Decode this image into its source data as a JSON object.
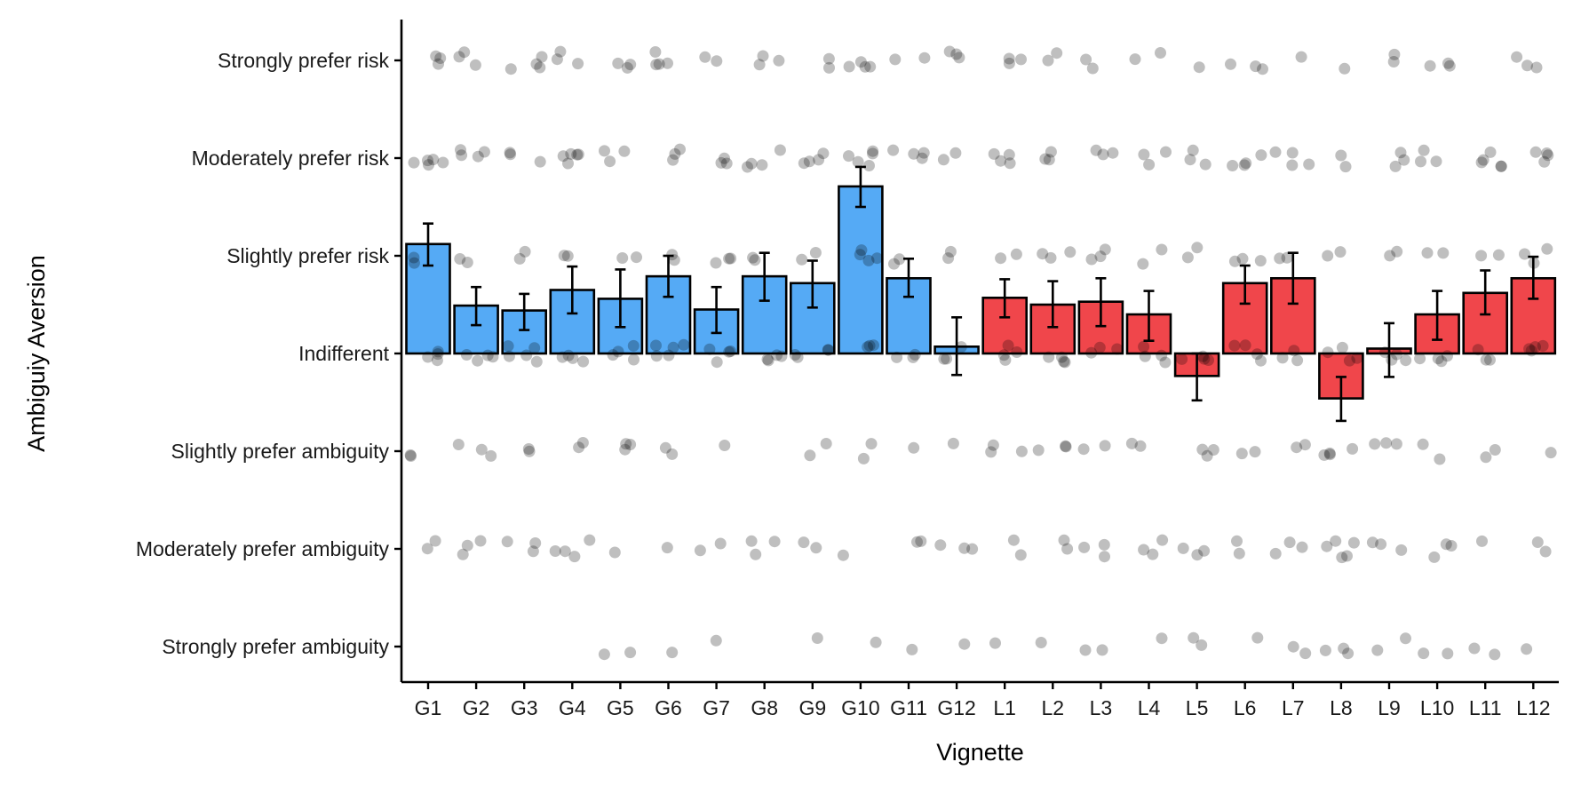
{
  "chart_data": {
    "type": "bar",
    "xlabel": "Vignette",
    "ylabel": "Ambiguiy Aversion",
    "y_levels": [
      {
        "value": -3,
        "label": "Strongly prefer ambiguity"
      },
      {
        "value": -2,
        "label": "Moderately prefer ambiguity"
      },
      {
        "value": -1,
        "label": "Slightly prefer ambiguity"
      },
      {
        "value": 0,
        "label": "Indifferent"
      },
      {
        "value": 1,
        "label": "Slightly prefer risk"
      },
      {
        "value": 2,
        "label": "Moderately prefer risk"
      },
      {
        "value": 3,
        "label": "Strongly prefer risk"
      }
    ],
    "ylim": [
      -3.4,
      3.4
    ],
    "grid": false,
    "legend": "none",
    "colors": {
      "G": "#55aaf5",
      "L": "#f0464b",
      "points": "#000000"
    },
    "point_opacity": 0.25,
    "categories": [
      "G1",
      "G2",
      "G3",
      "G4",
      "G5",
      "G6",
      "G7",
      "G8",
      "G9",
      "G10",
      "G11",
      "G12",
      "L1",
      "L2",
      "L3",
      "L4",
      "L5",
      "L6",
      "L7",
      "L8",
      "L9",
      "L10",
      "L11",
      "L12"
    ],
    "groups": [
      "G",
      "G",
      "G",
      "G",
      "G",
      "G",
      "G",
      "G",
      "G",
      "G",
      "G",
      "G",
      "L",
      "L",
      "L",
      "L",
      "L",
      "L",
      "L",
      "L",
      "L",
      "L",
      "L",
      "L"
    ],
    "values": [
      1.12,
      0.49,
      0.44,
      0.65,
      0.56,
      0.79,
      0.45,
      0.79,
      0.72,
      1.71,
      0.77,
      0.07,
      0.57,
      0.5,
      0.53,
      0.4,
      -0.23,
      0.72,
      0.77,
      -0.46,
      0.05,
      0.4,
      0.62,
      0.77
    ],
    "error": [
      [
        0.9,
        1.33
      ],
      [
        0.29,
        0.68
      ],
      [
        0.24,
        0.61
      ],
      [
        0.41,
        0.89
      ],
      [
        0.27,
        0.86
      ],
      [
        0.58,
        1.0
      ],
      [
        0.21,
        0.68
      ],
      [
        0.54,
        1.03
      ],
      [
        0.47,
        0.95
      ],
      [
        1.5,
        1.91
      ],
      [
        0.58,
        0.97
      ],
      [
        -0.22,
        0.37
      ],
      [
        0.37,
        0.76
      ],
      [
        0.27,
        0.74
      ],
      [
        0.28,
        0.77
      ],
      [
        0.13,
        0.64
      ],
      [
        -0.48,
        0.0
      ],
      [
        0.51,
        0.9
      ],
      [
        0.51,
        1.03
      ],
      [
        -0.69,
        -0.24
      ],
      [
        -0.24,
        0.31
      ],
      [
        0.14,
        0.64
      ],
      [
        0.4,
        0.85
      ],
      [
        0.56,
        0.99
      ]
    ],
    "counts": {
      "G1": [
        0,
        2,
        2,
        4,
        2,
        5,
        3
      ],
      "G2": [
        0,
        3,
        3,
        4,
        2,
        4,
        3
      ],
      "G3": [
        0,
        3,
        2,
        5,
        2,
        3,
        4
      ],
      "G4": [
        0,
        4,
        2,
        4,
        2,
        5,
        3
      ],
      "G5": [
        2,
        1,
        3,
        4,
        2,
        3,
        3
      ],
      "G6": [
        1,
        1,
        2,
        5,
        2,
        3,
        4
      ],
      "G7": [
        1,
        2,
        1,
        4,
        3,
        3,
        2
      ],
      "G8": [
        0,
        3,
        0,
        4,
        2,
        4,
        3
      ],
      "G9": [
        1,
        2,
        2,
        4,
        2,
        4,
        2
      ],
      "G10": [
        1,
        1,
        2,
        3,
        4,
        5,
        4
      ],
      "G11": [
        1,
        2,
        1,
        3,
        2,
        4,
        2
      ],
      "G12": [
        1,
        3,
        1,
        3,
        2,
        2,
        3
      ],
      "L1": [
        1,
        2,
        3,
        4,
        2,
        4,
        3
      ],
      "L2": [
        1,
        2,
        3,
        4,
        3,
        3,
        2
      ],
      "L3": [
        2,
        3,
        2,
        3,
        3,
        3,
        2
      ],
      "L4": [
        1,
        3,
        2,
        4,
        2,
        3,
        2
      ],
      "L5": [
        2,
        3,
        3,
        4,
        2,
        3,
        1
      ],
      "L6": [
        1,
        2,
        2,
        4,
        3,
        4,
        3
      ],
      "L7": [
        2,
        3,
        2,
        3,
        2,
        4,
        1
      ],
      "L8": [
        3,
        5,
        4,
        4,
        2,
        2,
        1
      ],
      "L9": [
        2,
        3,
        3,
        4,
        2,
        3,
        2
      ],
      "L10": [
        2,
        3,
        2,
        4,
        2,
        3,
        3
      ],
      "L11": [
        2,
        1,
        2,
        3,
        2,
        5,
        0
      ],
      "L12": [
        1,
        2,
        1,
        4,
        3,
        4,
        3
      ]
    }
  }
}
